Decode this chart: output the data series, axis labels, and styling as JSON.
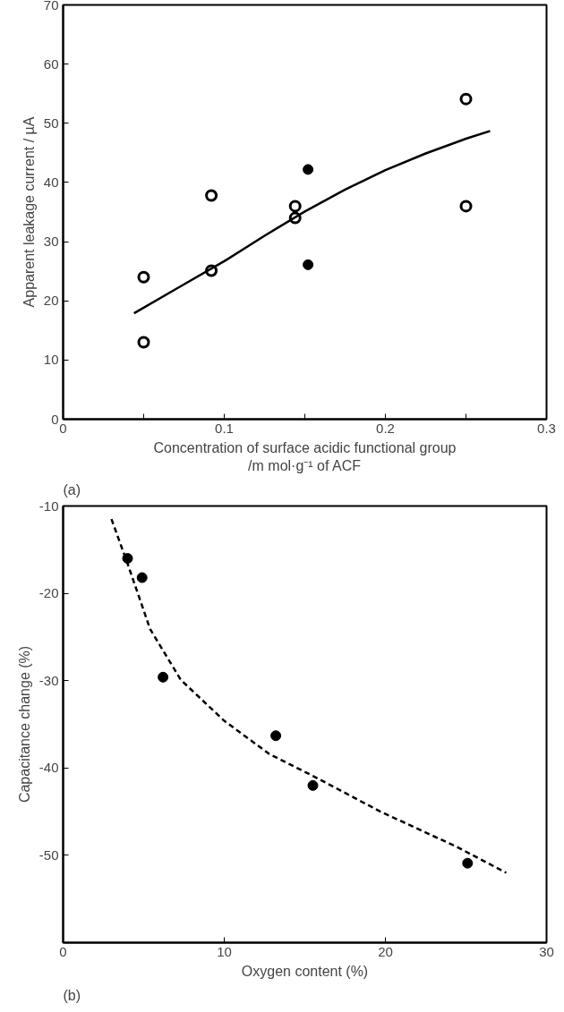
{
  "chart_data": [
    {
      "type": "scatter",
      "xlabel": "Concentration of surface acidic functional group\n/m mol·g⁻¹ of ACF",
      "ylabel": "Apparent leakage current / µA",
      "annotations": [
        "(a)"
      ],
      "xlim": [
        0,
        0.3
      ],
      "ylim": [
        0,
        70
      ],
      "xticks": [
        0,
        {
          "value": 0.05,
          "label": null
        },
        0.1,
        {
          "value": 0.15,
          "label": null
        },
        0.2,
        {
          "value": 0.25,
          "label": null
        },
        0.3
      ],
      "yticks": [
        0,
        10,
        20,
        30,
        40,
        50,
        60,
        70
      ],
      "grid": false,
      "series": [
        {
          "color": "#ffffff",
          "marker": "circle",
          "x": [
            0.05,
            0.05,
            0.092,
            0.092,
            0.144,
            0.144,
            0.25,
            0.25
          ],
          "values": [
            24,
            13,
            37.8,
            25.1,
            36,
            34,
            54.1,
            36
          ]
        },
        {
          "color": "#000000",
          "marker": "circle",
          "x": [
            0.152,
            0.152
          ],
          "values": [
            42.2,
            26.1
          ]
        },
        {
          "type": "line",
          "color": "#000000",
          "line_style": "solid",
          "x": [
            0.044,
            0.07,
            0.1,
            0.125,
            0.15,
            0.175,
            0.2,
            0.225,
            0.25,
            0.265
          ],
          "values": [
            17.9,
            22,
            26.7,
            31,
            35.1,
            38.8,
            42.1,
            44.9,
            47.4,
            48.7
          ]
        }
      ]
    },
    {
      "type": "scatter",
      "xlabel": "Oxygen content (%)",
      "ylabel": "Capacitance change (%)",
      "annotations": [
        "(b)"
      ],
      "xlim": [
        0,
        30
      ],
      "ylim": [
        -60,
        -10
      ],
      "xticks": [
        0,
        10,
        20,
        30
      ],
      "yticks": [
        -10,
        -20,
        -30,
        -40,
        -50
      ],
      "grid": false,
      "series": [
        {
          "color": "#000000",
          "marker": "circle",
          "x": [
            4.0,
            4.9,
            6.2,
            13.2,
            15.5,
            25.1
          ],
          "values": [
            -16,
            -18.2,
            -29.6,
            -36.3,
            -42,
            -50.9
          ]
        },
        {
          "type": "line",
          "color": "#000000",
          "line_style": "dashed",
          "x": [
            3.0,
            4.0,
            5.4,
            7.3,
            10,
            12.8,
            15.6,
            19.7,
            24.4,
            27.5
          ],
          "values": [
            -11.5,
            -16.6,
            -24.1,
            -29.9,
            -34.6,
            -38.4,
            -41,
            -45,
            -49,
            -52
          ]
        }
      ]
    }
  ]
}
